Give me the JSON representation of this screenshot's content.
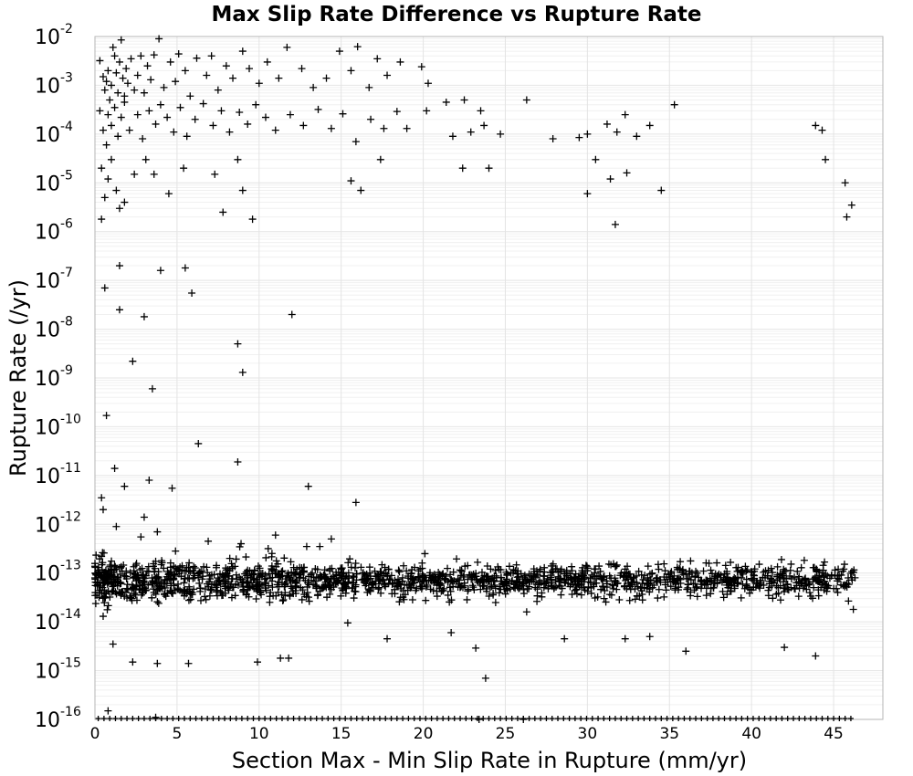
{
  "chart_data": {
    "type": "scatter",
    "title": "Max Slip Rate Difference vs Rupture Rate",
    "xlabel": "Section Max - Min Slip Rate in Rupture (mm/yr)",
    "ylabel": "Rupture Rate (/yr)",
    "xlim": [
      0,
      48
    ],
    "ylim": [
      1e-16,
      0.01
    ],
    "y_scale": "log",
    "x_ticks": [
      "0",
      "5",
      "10",
      "15",
      "20",
      "25",
      "30",
      "35",
      "40",
      "45"
    ],
    "y_ticks": [
      {
        "base": "10",
        "exp": "-16"
      },
      {
        "base": "10",
        "exp": "-15"
      },
      {
        "base": "10",
        "exp": "-14"
      },
      {
        "base": "10",
        "exp": "-13"
      },
      {
        "base": "10",
        "exp": "-12"
      },
      {
        "base": "10",
        "exp": "-11"
      },
      {
        "base": "10",
        "exp": "-10"
      },
      {
        "base": "10",
        "exp": "-9"
      },
      {
        "base": "10",
        "exp": "-8"
      },
      {
        "base": "10",
        "exp": "-7"
      },
      {
        "base": "10",
        "exp": "-6"
      },
      {
        "base": "10",
        "exp": "-5"
      },
      {
        "base": "10",
        "exp": "-4"
      },
      {
        "base": "10",
        "exp": "-3"
      },
      {
        "base": "10",
        "exp": "-2"
      }
    ],
    "grid": true,
    "marker": "+",
    "color": "#000000",
    "points": [
      [
        0.3,
        0.0032
      ],
      [
        0.5,
        0.0015
      ],
      [
        0.6,
        0.0008
      ],
      [
        0.7,
        0.0012
      ],
      [
        0.8,
        0.002
      ],
      [
        0.9,
        0.0005
      ],
      [
        1.0,
        0.001
      ],
      [
        1.1,
        0.006
      ],
      [
        1.2,
        0.004
      ],
      [
        1.3,
        0.0018
      ],
      [
        1.4,
        0.0007
      ],
      [
        1.5,
        0.003
      ],
      [
        1.6,
        0.0085
      ],
      [
        1.7,
        0.0014
      ],
      [
        1.8,
        0.0006
      ],
      [
        1.9,
        0.0022
      ],
      [
        2.0,
        0.0011
      ],
      [
        2.2,
        0.0035
      ],
      [
        2.4,
        0.0008
      ],
      [
        2.6,
        0.0016
      ],
      [
        2.8,
        0.004
      ],
      [
        3.0,
        0.0007
      ],
      [
        3.2,
        0.0025
      ],
      [
        3.4,
        0.0013
      ],
      [
        3.6,
        0.0042
      ],
      [
        3.9,
        0.009
      ],
      [
        4.2,
        0.0009
      ],
      [
        4.6,
        0.003
      ],
      [
        4.9,
        0.0012
      ],
      [
        5.1,
        0.0044
      ],
      [
        5.5,
        0.002
      ],
      [
        5.8,
        0.0006
      ],
      [
        6.2,
        0.0036
      ],
      [
        6.8,
        0.0016
      ],
      [
        7.1,
        0.004
      ],
      [
        7.5,
        0.0008
      ],
      [
        8.0,
        0.0025
      ],
      [
        8.4,
        0.0014
      ],
      [
        9.0,
        0.005
      ],
      [
        9.4,
        0.0022
      ],
      [
        10.0,
        0.0011
      ],
      [
        10.5,
        0.003
      ],
      [
        11.2,
        0.0014
      ],
      [
        11.7,
        0.006
      ],
      [
        12.6,
        0.0022
      ],
      [
        13.3,
        0.0009
      ],
      [
        14.1,
        0.0014
      ],
      [
        14.9,
        0.005
      ],
      [
        15.6,
        0.002
      ],
      [
        16.0,
        0.0062
      ],
      [
        16.7,
        0.0009
      ],
      [
        17.2,
        0.0035
      ],
      [
        17.8,
        0.0016
      ],
      [
        18.6,
        0.003
      ],
      [
        19.9,
        0.0024
      ],
      [
        20.3,
        0.0011
      ],
      [
        21.4,
        0.00045
      ],
      [
        22.5,
        0.0005
      ],
      [
        23.5,
        0.0003
      ],
      [
        26.3,
        0.0005
      ],
      [
        35.3,
        0.0004
      ],
      [
        0.3,
        0.0003
      ],
      [
        0.5,
        0.00012
      ],
      [
        0.7,
        6e-05
      ],
      [
        0.8,
        0.00025
      ],
      [
        1.0,
        0.00015
      ],
      [
        1.2,
        0.00035
      ],
      [
        1.4,
        9e-05
      ],
      [
        1.6,
        0.00022
      ],
      [
        1.8,
        0.00045
      ],
      [
        2.1,
        0.00012
      ],
      [
        2.6,
        0.00025
      ],
      [
        2.9,
        8e-05
      ],
      [
        3.3,
        0.0003
      ],
      [
        3.7,
        0.00016
      ],
      [
        4.0,
        0.0004
      ],
      [
        4.4,
        0.00022
      ],
      [
        4.8,
        0.00011
      ],
      [
        5.2,
        0.00035
      ],
      [
        5.6,
        9e-05
      ],
      [
        6.1,
        0.0002
      ],
      [
        6.6,
        0.00042
      ],
      [
        7.2,
        0.00015
      ],
      [
        7.7,
        0.0003
      ],
      [
        8.2,
        0.00011
      ],
      [
        8.8,
        0.00028
      ],
      [
        9.3,
        0.00016
      ],
      [
        9.8,
        0.0004
      ],
      [
        10.4,
        0.00022
      ],
      [
        11.0,
        0.00012
      ],
      [
        11.9,
        0.00025
      ],
      [
        12.7,
        0.00015
      ],
      [
        13.6,
        0.00032
      ],
      [
        14.4,
        0.00013
      ],
      [
        15.1,
        0.00026
      ],
      [
        15.9,
        7e-05
      ],
      [
        16.8,
        0.0002
      ],
      [
        17.6,
        0.00013
      ],
      [
        18.4,
        0.00029
      ],
      [
        19.0,
        0.00013
      ],
      [
        20.2,
        0.0003
      ],
      [
        21.8,
        9e-05
      ],
      [
        22.9,
        0.00011
      ],
      [
        23.7,
        0.00015
      ],
      [
        24.7,
        0.0001
      ],
      [
        27.9,
        8e-05
      ],
      [
        29.5,
        8.5e-05
      ],
      [
        30.0,
        0.0001
      ],
      [
        31.2,
        0.00016
      ],
      [
        31.8,
        0.00011
      ],
      [
        32.3,
        0.00025
      ],
      [
        33.0,
        9e-05
      ],
      [
        33.8,
        0.00015
      ],
      [
        43.9,
        0.00015
      ],
      [
        44.3,
        0.00012
      ],
      [
        0.4,
        2e-05
      ],
      [
        0.6,
        5e-06
      ],
      [
        0.8,
        1.2e-05
      ],
      [
        1.0,
        3e-05
      ],
      [
        1.3,
        7e-06
      ],
      [
        1.5,
        3e-06
      ],
      [
        1.8,
        4e-06
      ],
      [
        2.4,
        1.5e-05
      ],
      [
        3.1,
        3e-05
      ],
      [
        3.6,
        1.5e-05
      ],
      [
        4.5,
        6e-06
      ],
      [
        5.4,
        2e-05
      ],
      [
        7.3,
        1.5e-05
      ],
      [
        7.8,
        2.5e-06
      ],
      [
        8.7,
        3e-05
      ],
      [
        9.0,
        7e-06
      ],
      [
        9.6,
        1.8e-06
      ],
      [
        15.6,
        1.1e-05
      ],
      [
        16.2,
        7e-06
      ],
      [
        17.4,
        3e-05
      ],
      [
        22.4,
        2e-05
      ],
      [
        24.0,
        2e-05
      ],
      [
        30.0,
        6e-06
      ],
      [
        30.5,
        3e-05
      ],
      [
        31.4,
        1.2e-05
      ],
      [
        31.7,
        1.4e-06
      ],
      [
        32.4,
        1.6e-05
      ],
      [
        34.5,
        7e-06
      ],
      [
        44.5,
        3e-05
      ],
      [
        45.7,
        1e-05
      ],
      [
        45.8,
        2e-06
      ],
      [
        46.1,
        3.5e-06
      ],
      [
        0.4,
        1.8e-06
      ],
      [
        0.6,
        7e-08
      ],
      [
        1.5,
        2e-07
      ],
      [
        1.5,
        2.5e-08
      ],
      [
        3.0,
        1.8e-08
      ],
      [
        4.0,
        1.6e-07
      ],
      [
        5.5,
        1.8e-07
      ],
      [
        5.9,
        5.5e-08
      ],
      [
        12.0,
        2e-08
      ],
      [
        2.3,
        2.2e-09
      ],
      [
        8.7,
        5e-09
      ],
      [
        9.0,
        1.3e-09
      ],
      [
        3.5,
        6e-10
      ],
      [
        0.7,
        1.7e-10
      ],
      [
        6.3,
        4.5e-11
      ],
      [
        8.7,
        1.9e-11
      ],
      [
        1.2,
        1.4e-11
      ],
      [
        1.8,
        6e-12
      ],
      [
        3.3,
        8e-12
      ],
      [
        4.7,
        5.5e-12
      ],
      [
        13.0,
        6e-12
      ],
      [
        0.4,
        3.5e-12
      ],
      [
        0.5,
        2e-12
      ],
      [
        3.0,
        1.4e-12
      ],
      [
        15.9,
        2.8e-12
      ],
      [
        1.3,
        9e-13
      ],
      [
        2.8,
        5.5e-13
      ],
      [
        3.8,
        7e-13
      ],
      [
        6.9,
        4.5e-13
      ],
      [
        8.9,
        4e-13
      ],
      [
        11.0,
        6e-13
      ],
      [
        12.9,
        3.5e-13
      ],
      [
        13.7,
        3.5e-13
      ],
      [
        14.4,
        5e-13
      ],
      [
        20.1,
        2.5e-13
      ],
      [
        0.5,
        1.3e-14
      ],
      [
        1.1,
        3.5e-15
      ],
      [
        2.3,
        1.5e-15
      ],
      [
        3.8,
        1.4e-15
      ],
      [
        5.7,
        1.4e-15
      ],
      [
        9.9,
        1.5e-15
      ],
      [
        11.3,
        1.8e-15
      ],
      [
        11.8,
        1.8e-15
      ],
      [
        0.8,
        1.5e-16
      ],
      [
        3.7,
        1.1e-16
      ],
      [
        23.4,
        1e-16
      ],
      [
        26.1,
        1e-16
      ],
      [
        23.8,
        7e-16
      ],
      [
        42.0,
        3e-15
      ],
      [
        43.9,
        2e-15
      ],
      [
        36.0,
        2.5e-15
      ],
      [
        28.6,
        4.5e-15
      ],
      [
        32.3,
        4.5e-15
      ],
      [
        33.8,
        5e-15
      ],
      [
        26.3,
        1.6e-14
      ],
      [
        17.8,
        4.5e-15
      ],
      [
        15.4,
        9.5e-15
      ],
      [
        21.7,
        6e-15
      ],
      [
        46.2,
        1.8e-14
      ],
      [
        23.2,
        2.9e-15
      ]
    ]
  }
}
